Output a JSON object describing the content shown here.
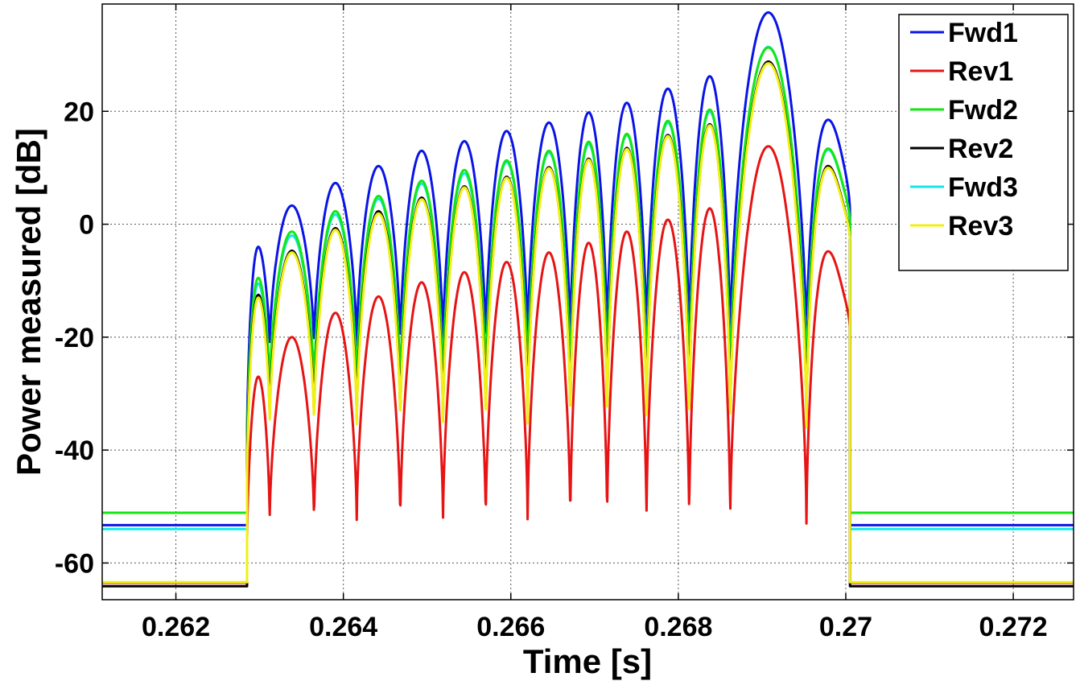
{
  "chart_data": {
    "type": "line",
    "xlabel": "Time [s]",
    "ylabel": "Power measured [dB]",
    "xlim": [
      0.26112,
      0.27272
    ],
    "ylim": [
      -66.5,
      39
    ],
    "grid": true,
    "legend_position": "top-right",
    "x_ticks": [
      0.262,
      0.264,
      0.266,
      0.268,
      0.27,
      0.272
    ],
    "x_tick_labels": [
      "0.262",
      "0.264",
      "0.266",
      "0.268",
      "0.27",
      "0.272"
    ],
    "y_ticks": [
      -60,
      -40,
      -20,
      0,
      20
    ],
    "y_tick_labels": [
      "-60",
      "-40",
      "-20",
      "0",
      "20"
    ],
    "pulse": {
      "start": 0.26285,
      "end": 0.27005,
      "dip_times": [
        0.26312,
        0.26365,
        0.26416,
        0.26468,
        0.26519,
        0.2657,
        0.2662,
        0.26671,
        0.26715,
        0.26762,
        0.26813,
        0.26862,
        0.26953
      ]
    },
    "series": [
      {
        "name": "Fwd1",
        "color": "#0a14e6",
        "baseline": -53.3,
        "edge": -38,
        "peaks": [
          -4,
          3.3,
          7.3,
          10.3,
          13,
          14.7,
          16.5,
          18,
          19.8,
          21.5,
          24,
          26.2,
          37.5,
          18.5
        ],
        "end_level": 2,
        "dip_floor": -22
      },
      {
        "name": "Rev1",
        "color": "#e61414",
        "baseline": -63.5,
        "edge": -57,
        "peaks": [
          -27,
          -20,
          -15.7,
          -12.8,
          -10.3,
          -8.5,
          -6.7,
          -5,
          -3.3,
          -1.3,
          0.8,
          2.8,
          13.8,
          -4.8
        ],
        "end_level": -19,
        "dip_floor": -53
      },
      {
        "name": "Fwd2",
        "color": "#14e614",
        "baseline": -51.1,
        "edge": -41,
        "peaks": [
          -9.5,
          -1.3,
          2.3,
          5,
          7.7,
          9.6,
          11.3,
          13,
          14.6,
          16,
          18.3,
          20.3,
          31.3,
          13.4
        ],
        "end_level": 0,
        "dip_floor": -30
      },
      {
        "name": "Rev2",
        "color": "#000000",
        "baseline": -64.1,
        "edge": -44,
        "peaks": [
          -12.5,
          -4.7,
          -0.7,
          2.3,
          4.7,
          6.7,
          8.4,
          10.1,
          11.6,
          13.5,
          15.8,
          17.7,
          28.8,
          10.3
        ],
        "end_level": -3,
        "dip_floor": -35
      },
      {
        "name": "Fwd3",
        "color": "#14e6e6",
        "baseline": -54,
        "edge": -43,
        "peaks": [
          -10.5,
          -2,
          1.7,
          4.5,
          7.2,
          9,
          11,
          12.7,
          14.2,
          15.8,
          18,
          20,
          31.4,
          13.2
        ],
        "end_level": 0,
        "dip_floor": -30
      },
      {
        "name": "Rev3",
        "color": "#f0f014",
        "baseline": -63.4,
        "edge": -46,
        "peaks": [
          -13,
          -5,
          -1,
          1.9,
          4.4,
          6.5,
          8.2,
          9.9,
          11.4,
          13.3,
          15.6,
          17.5,
          28.5,
          10
        ],
        "end_level": -3,
        "dip_floor": -36
      }
    ]
  }
}
